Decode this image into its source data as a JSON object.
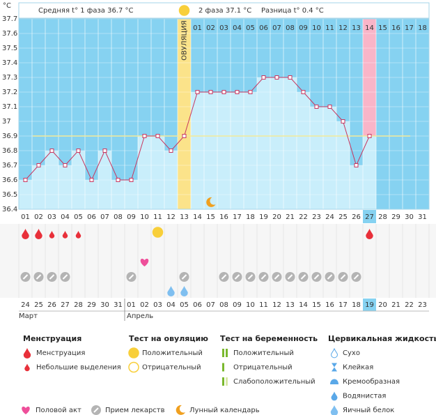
{
  "header": {
    "unit": "°C",
    "phase1": "Средняя t° 1 фаза 36.7 °C",
    "phase2": "2 фаза 37.1 °C",
    "difference": "Разница t° 0.4 °C"
  },
  "chart_data": {
    "type": "line",
    "categories": [
      "01",
      "02",
      "03",
      "04",
      "05",
      "06",
      "07",
      "08",
      "09",
      "10",
      "11",
      "12",
      "13",
      "14",
      "15",
      "16",
      "17",
      "18",
      "19",
      "20",
      "21",
      "22",
      "23",
      "24",
      "25",
      "26",
      "27",
      "28",
      "29",
      "30",
      "31"
    ],
    "values": [
      36.6,
      36.7,
      36.8,
      36.7,
      36.8,
      36.6,
      36.8,
      36.6,
      36.6,
      36.9,
      36.9,
      36.8,
      36.9,
      37.2,
      37.2,
      37.2,
      37.2,
      37.2,
      37.3,
      37.3,
      37.3,
      37.2,
      37.1,
      37.1,
      37.0,
      36.7,
      36.9,
      null,
      null,
      null,
      null
    ],
    "cycle_labels": [
      null,
      null,
      null,
      null,
      null,
      null,
      null,
      null,
      null,
      null,
      null,
      null,
      "ОВУЛЯЦИЯ",
      "01",
      "02",
      "03",
      "04",
      "05",
      "06",
      "07",
      "08",
      "09",
      "10",
      "11",
      "12",
      "13",
      "14",
      "15",
      "16",
      "17",
      "18"
    ],
    "ylim": [
      36.4,
      37.7
    ],
    "yticks": [
      36.4,
      36.5,
      36.6,
      36.7,
      36.8,
      36.9,
      37,
      37.1,
      37.2,
      37.3,
      37.4,
      37.5,
      37.6,
      37.7
    ],
    "grid": true,
    "cover_line": 36.9,
    "highlight": "27",
    "color": "#c8365f",
    "bar_color": "#c9eefb",
    "background": "#86d2f1",
    "ovulation_color": "#fbe38a",
    "highlight_color": "#f9b5c8"
  },
  "markers": {
    "menstruation": [
      "01",
      "02",
      "27"
    ],
    "spotting": [
      "03",
      "04",
      "05"
    ],
    "ovulation_positive": [
      "11"
    ],
    "intercourse": [
      "10"
    ],
    "medication": [
      "01",
      "02",
      "03",
      "04",
      "09",
      "13",
      "16",
      "17",
      "18",
      "19",
      "20",
      "21",
      "22",
      "23",
      "24",
      "25",
      "26"
    ],
    "egg_white": [
      "12",
      "13"
    ],
    "moon": [
      "15"
    ]
  },
  "dates": {
    "labels": [
      "24",
      "25",
      "26",
      "27",
      "28",
      "29",
      "30",
      "31",
      "01",
      "02",
      "03",
      "04",
      "05",
      "06",
      "07",
      "08",
      "09",
      "10",
      "11",
      "12",
      "13",
      "14",
      "15",
      "16",
      "17",
      "18",
      "19",
      "20",
      "21",
      "22",
      "23"
    ],
    "weekend": [
      false,
      true,
      true,
      false,
      false,
      false,
      false,
      false,
      true,
      true,
      false,
      false,
      false,
      false,
      false,
      true,
      true,
      false,
      false,
      false,
      false,
      false,
      true,
      true,
      false,
      false,
      false,
      false,
      false,
      true,
      true
    ],
    "months": [
      "Март",
      "Апрель"
    ]
  },
  "legend": {
    "menstruation": {
      "title": "Менструация",
      "items": [
        "Менструация",
        "Небольшие выделения"
      ]
    },
    "ovulation_test": {
      "title": "Тест на овуляцию",
      "items": [
        "Положительный",
        "Отрицательный"
      ]
    },
    "pregnancy_test": {
      "title": "Тест на беременность",
      "items": [
        "Положительный",
        "Отрицательный",
        "Слабоположительный"
      ]
    },
    "cervical_fluid": {
      "title": "Цервикальная жидкость",
      "items": [
        "Сухо",
        "Клейкая",
        "Кремообразная",
        "Водянистая",
        "Яичный белок"
      ]
    },
    "other": [
      "Половой акт",
      "Прием лекарств",
      "Лунный календарь"
    ]
  }
}
